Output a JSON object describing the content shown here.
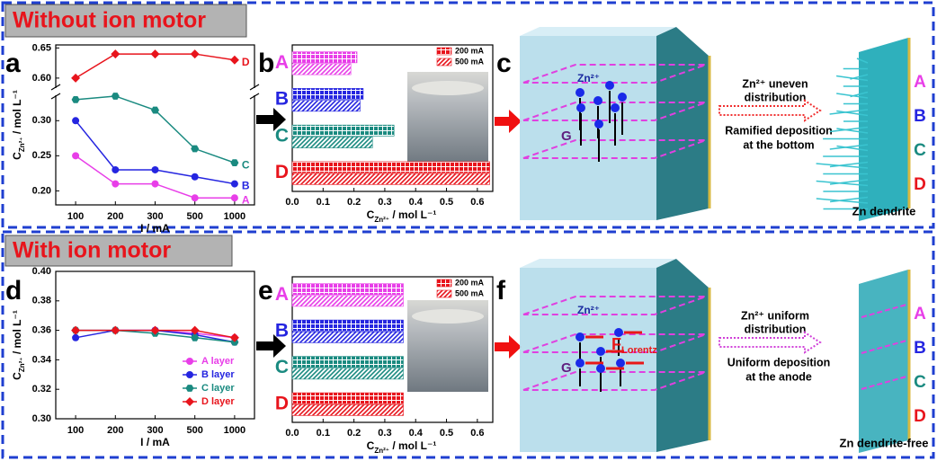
{
  "sections": [
    {
      "title": "Without ion motor"
    },
    {
      "title": "With ion motor"
    }
  ],
  "panel_labels": [
    "a",
    "b",
    "c",
    "d",
    "e",
    "f"
  ],
  "chart_data": [
    {
      "type": "line",
      "categories": [
        100,
        200,
        300,
        500,
        1000
      ],
      "x_label": "I / mA",
      "y_label": {
        "main": "C",
        "sub": "Zn²⁺",
        "unit": " / mol L⁻¹"
      },
      "ylim": [
        0.18,
        0.655
      ],
      "y_break": [
        0.335,
        0.585
      ],
      "yticks": [
        {
          "value": 0.2,
          "label": "0.20"
        },
        {
          "value": 0.25,
          "label": "0.25"
        },
        {
          "value": 0.3,
          "label": "0.30"
        },
        {
          "value": 0.6,
          "label": "0.60"
        },
        {
          "value": 0.65,
          "label": "0.65"
        }
      ],
      "labels_at_end": true,
      "series": [
        {
          "name": "A",
          "color": "#e83ee8",
          "marker": "circle",
          "values": [
            0.25,
            0.21,
            0.21,
            0.19,
            0.19
          ]
        },
        {
          "name": "B",
          "color": "#2525e0",
          "marker": "circle",
          "values": [
            0.3,
            0.23,
            0.23,
            0.22,
            0.21
          ]
        },
        {
          "name": "C",
          "color": "#1a8a80",
          "marker": "hexagon",
          "values": [
            0.33,
            0.335,
            0.315,
            0.26,
            0.24
          ]
        },
        {
          "name": "D",
          "color": "#e8141c",
          "marker": "diamond",
          "values": [
            0.6,
            0.64,
            0.64,
            0.64,
            0.63
          ]
        }
      ]
    },
    {
      "type": "hbar",
      "categories": [
        "A",
        "B",
        "C",
        "D"
      ],
      "category_colors": [
        "#e83ee8",
        "#2525e0",
        "#1a8a80",
        "#e8141c"
      ],
      "x_label": {
        "main": "C",
        "sub": "Zn²⁺",
        "unit": " / mol L⁻¹"
      },
      "xlim": [
        0,
        0.65
      ],
      "xticks": [
        {
          "value": 0,
          "label": "0.0"
        },
        {
          "value": 0.1,
          "label": "0.1"
        },
        {
          "value": 0.2,
          "label": "0.2"
        },
        {
          "value": 0.3,
          "label": "0.3"
        },
        {
          "value": 0.4,
          "label": "0.4"
        },
        {
          "value": 0.5,
          "label": "0.5"
        },
        {
          "value": 0.6,
          "label": "0.6"
        }
      ],
      "legend": "upper right",
      "series": [
        {
          "name": "200 mA",
          "pattern": "grid",
          "values": [
            0.21,
            0.23,
            0.33,
            0.64
          ]
        },
        {
          "name": "500 mA",
          "pattern": "diagonal",
          "values": [
            0.19,
            0.22,
            0.26,
            0.64
          ]
        }
      ]
    },
    {
      "type": "line",
      "categories": [
        100,
        200,
        300,
        500,
        1000
      ],
      "x_label": "I / mA",
      "y_label": {
        "main": "C",
        "sub": "Zn²⁺",
        "unit": " / mol L⁻¹"
      },
      "ylim": [
        0.3,
        0.4
      ],
      "yticks": [
        {
          "value": 0.3,
          "label": "0.30"
        },
        {
          "value": 0.32,
          "label": "0.32"
        },
        {
          "value": 0.34,
          "label": "0.34"
        },
        {
          "value": 0.36,
          "label": "0.36"
        },
        {
          "value": 0.38,
          "label": "0.38"
        },
        {
          "value": 0.4,
          "label": "0.40"
        }
      ],
      "legend": "lower right",
      "series": [
        {
          "name": "A layer",
          "color": "#e83ee8",
          "marker": "circle",
          "values": [
            0.36,
            0.36,
            0.36,
            0.358,
            0.355
          ]
        },
        {
          "name": "B layer",
          "color": "#2525e0",
          "marker": "circle",
          "values": [
            0.355,
            0.36,
            0.36,
            0.357,
            0.352
          ]
        },
        {
          "name": "C layer",
          "color": "#1a8a80",
          "marker": "hexagon",
          "values": [
            0.36,
            0.36,
            0.358,
            0.355,
            0.352
          ]
        },
        {
          "name": "D layer",
          "color": "#e8141c",
          "marker": "diamond",
          "values": [
            0.36,
            0.36,
            0.36,
            0.36,
            0.355
          ]
        }
      ]
    },
    {
      "type": "hbar",
      "categories": [
        "A",
        "B",
        "C",
        "D"
      ],
      "category_colors": [
        "#e83ee8",
        "#2525e0",
        "#1a8a80",
        "#e8141c"
      ],
      "x_label": {
        "main": "C",
        "sub": "Zn²⁺",
        "unit": " / mol L⁻¹"
      },
      "xlim": [
        0,
        0.65
      ],
      "xticks": [
        {
          "value": 0,
          "label": "0.0"
        },
        {
          "value": 0.1,
          "label": "0.1"
        },
        {
          "value": 0.2,
          "label": "0.2"
        },
        {
          "value": 0.3,
          "label": "0.3"
        },
        {
          "value": 0.4,
          "label": "0.4"
        },
        {
          "value": 0.5,
          "label": "0.5"
        },
        {
          "value": 0.6,
          "label": "0.6"
        }
      ],
      "legend": "upper right",
      "series": [
        {
          "name": "200 mA",
          "pattern": "grid",
          "values": [
            0.36,
            0.36,
            0.36,
            0.36
          ]
        },
        {
          "name": "500 mA",
          "pattern": "diagonal",
          "values": [
            0.36,
            0.36,
            0.36,
            0.36
          ]
        }
      ]
    }
  ],
  "diagrams": [
    {
      "ion_label": "Zn²⁺",
      "gravity_label": "G",
      "description": [
        "Zn²⁺ uneven",
        "distribution"
      ],
      "deposition": [
        "Ramified deposition",
        "at the  bottom"
      ],
      "layers": [
        "A",
        "B",
        "C",
        "D"
      ],
      "layer_colors": [
        "#e83ee8",
        "#2525e0",
        "#1a8a80",
        "#e8141c"
      ],
      "arrow_color": "#f03030",
      "result": "Zn dendrite"
    },
    {
      "ion_label": "Zn²⁺",
      "gravity_label": "G",
      "force_label": {
        "main": "F",
        "sub": "Lorentz"
      },
      "description": [
        "Zn²⁺ uniform",
        "distribution"
      ],
      "deposition": [
        "Uniform deposition",
        "at the anode"
      ],
      "layers": [
        "A",
        "B",
        "C",
        "D"
      ],
      "layer_colors": [
        "#e83ee8",
        "#2525e0",
        "#1a8a80",
        "#e8141c"
      ],
      "arrow_color": "#d040d8",
      "result": "Zn dendrite-free"
    }
  ]
}
